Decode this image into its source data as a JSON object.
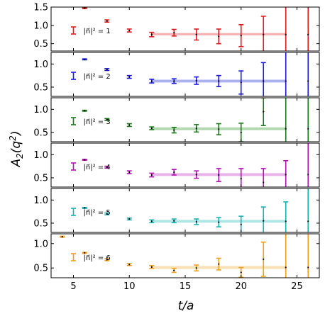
{
  "chart_data": {
    "type": "scatter",
    "layout": "6 stacked panels sharing x-axis",
    "xlabel": "t/a",
    "ylabel": "A_2(q^2)",
    "xlim": [
      3,
      27
    ],
    "xticks": [
      5,
      10,
      15,
      20,
      25
    ],
    "panels": [
      {
        "legend": "|n⃗|² = 1",
        "color": "#e31a1c",
        "band_color": "#f4a5a8",
        "ylim": [
          0.3,
          1.5
        ],
        "yticks": [
          0.5,
          1.0,
          1.5
        ],
        "fit": {
          "x_range": [
            12,
            24
          ],
          "value": 0.76,
          "err": 0.03
        },
        "points": [
          {
            "t": 6,
            "y": 1.47,
            "err": 0.01
          },
          {
            "t": 8,
            "y": 1.12,
            "err": 0.03
          },
          {
            "t": 10,
            "y": 0.86,
            "err": 0.04
          },
          {
            "t": 12,
            "y": 0.75,
            "err": 0.06
          },
          {
            "t": 14,
            "y": 0.8,
            "err": 0.09
          },
          {
            "t": 16,
            "y": 0.75,
            "err": 0.15
          },
          {
            "t": 18,
            "y": 0.7,
            "err": 0.2
          },
          {
            "t": 20,
            "y": 0.72,
            "err": 0.3
          },
          {
            "t": 22,
            "y": 0.75,
            "err": 0.5
          },
          {
            "t": 24,
            "y": 0.75,
            "err": 1.1
          },
          {
            "t": 26,
            "y": 0.75,
            "err": 1.1
          }
        ]
      },
      {
        "legend": "|n⃗|² = 2",
        "color": "#1c1ce0",
        "band_color": "#a3a8f0",
        "ylim": [
          0.3,
          1.25
        ],
        "yticks": [
          0.5,
          1.0
        ],
        "fit": {
          "x_range": [
            12,
            24
          ],
          "value": 0.63,
          "err": 0.03
        },
        "points": [
          {
            "t": 6,
            "y": 1.1,
            "err": 0.01
          },
          {
            "t": 8,
            "y": 0.88,
            "err": 0.02
          },
          {
            "t": 10,
            "y": 0.72,
            "err": 0.03
          },
          {
            "t": 12,
            "y": 0.63,
            "err": 0.04
          },
          {
            "t": 14,
            "y": 0.63,
            "err": 0.05
          },
          {
            "t": 16,
            "y": 0.64,
            "err": 0.08
          },
          {
            "t": 18,
            "y": 0.63,
            "err": 0.12
          },
          {
            "t": 20,
            "y": 0.6,
            "err": 0.25
          },
          {
            "t": 22,
            "y": 0.63,
            "err": 0.4
          },
          {
            "t": 24,
            "y": 0.63,
            "err": 1.0
          },
          {
            "t": 26,
            "y": 0.63,
            "err": 1.0
          }
        ]
      },
      {
        "legend": "|n⃗|² = 3",
        "color": "#1b7a1b",
        "band_color": "#a8d4a8",
        "ylim": [
          0.3,
          1.25
        ],
        "yticks": [
          0.5,
          1.0
        ],
        "fit": {
          "x_range": [
            12,
            24
          ],
          "value": 0.58,
          "err": 0.03
        },
        "points": [
          {
            "t": 6,
            "y": 0.97,
            "err": 0.01
          },
          {
            "t": 8,
            "y": 0.78,
            "err": 0.02
          },
          {
            "t": 10,
            "y": 0.66,
            "err": 0.03
          },
          {
            "t": 12,
            "y": 0.59,
            "err": 0.03
          },
          {
            "t": 14,
            "y": 0.55,
            "err": 0.06
          },
          {
            "t": 16,
            "y": 0.59,
            "err": 0.08
          },
          {
            "t": 18,
            "y": 0.57,
            "err": 0.12
          },
          {
            "t": 20,
            "y": 0.5,
            "err": 0.2
          },
          {
            "t": 22,
            "y": 0.95,
            "err": 0.3
          },
          {
            "t": 24,
            "y": 0.58,
            "err": 1.0
          },
          {
            "t": 26,
            "y": 0.58,
            "err": 1.0
          }
        ]
      },
      {
        "legend": "|n⃗|² = 4",
        "color": "#b511b5",
        "band_color": "#e7a8e7",
        "ylim": [
          0.3,
          1.25
        ],
        "yticks": [
          0.5,
          1.0
        ],
        "fit": {
          "x_range": [
            12,
            24
          ],
          "value": 0.57,
          "err": 0.03
        },
        "points": [
          {
            "t": 6,
            "y": 0.89,
            "err": 0.01
          },
          {
            "t": 8,
            "y": 0.73,
            "err": 0.02
          },
          {
            "t": 10,
            "y": 0.62,
            "err": 0.03
          },
          {
            "t": 12,
            "y": 0.56,
            "err": 0.04
          },
          {
            "t": 14,
            "y": 0.62,
            "err": 0.06
          },
          {
            "t": 16,
            "y": 0.57,
            "err": 0.08
          },
          {
            "t": 18,
            "y": 0.56,
            "err": 0.14
          },
          {
            "t": 20,
            "y": 0.48,
            "err": 0.22
          },
          {
            "t": 22,
            "y": 0.4,
            "err": 0.3
          },
          {
            "t": 24,
            "y": 0.57,
            "err": 0.3
          },
          {
            "t": 26,
            "y": 0.57,
            "err": 1.0
          }
        ]
      },
      {
        "legend": "|n⃗|² = 5",
        "color": "#17b3b3",
        "band_color": "#a8e3e3",
        "ylim": [
          0.3,
          1.25
        ],
        "yticks": [
          0.5,
          1.0
        ],
        "fit": {
          "x_range": [
            12,
            24
          ],
          "value": 0.54,
          "err": 0.03
        },
        "points": [
          {
            "t": 6,
            "y": 0.83,
            "err": 0.01
          },
          {
            "t": 8,
            "y": 0.7,
            "err": 0.02
          },
          {
            "t": 10,
            "y": 0.59,
            "err": 0.02
          },
          {
            "t": 12,
            "y": 0.54,
            "err": 0.03
          },
          {
            "t": 14,
            "y": 0.55,
            "err": 0.04
          },
          {
            "t": 16,
            "y": 0.53,
            "err": 0.06
          },
          {
            "t": 18,
            "y": 0.52,
            "err": 0.1
          },
          {
            "t": 20,
            "y": 0.47,
            "err": 0.18
          },
          {
            "t": 22,
            "y": 0.55,
            "err": 0.3
          },
          {
            "t": 24,
            "y": 0.54,
            "err": 0.42
          },
          {
            "t": 26,
            "y": 0.54,
            "err": 1.0
          }
        ]
      },
      {
        "legend": "|n⃗|² = 6",
        "color": "#f2a019",
        "band_color": "#f7deae",
        "ylim": [
          0.3,
          1.2
        ],
        "yticks": [
          0.5,
          1.0
        ],
        "fit": {
          "x_range": [
            12,
            24
          ],
          "value": 0.51,
          "err": 0.03
        },
        "points": [
          {
            "t": 4,
            "y": 1.14,
            "err": 0.01
          },
          {
            "t": 6,
            "y": 0.81,
            "err": 0.01
          },
          {
            "t": 8,
            "y": 0.67,
            "err": 0.02
          },
          {
            "t": 10,
            "y": 0.57,
            "err": 0.02
          },
          {
            "t": 12,
            "y": 0.52,
            "err": 0.03
          },
          {
            "t": 14,
            "y": 0.45,
            "err": 0.04
          },
          {
            "t": 16,
            "y": 0.5,
            "err": 0.06
          },
          {
            "t": 18,
            "y": 0.58,
            "err": 0.12
          },
          {
            "t": 20,
            "y": 0.41,
            "err": 0.1
          },
          {
            "t": 22,
            "y": 0.68,
            "err": 0.35
          },
          {
            "t": 24,
            "y": 0.51,
            "err": 0.7
          },
          {
            "t": 26,
            "y": 0.51,
            "err": 1.0
          }
        ]
      }
    ]
  }
}
